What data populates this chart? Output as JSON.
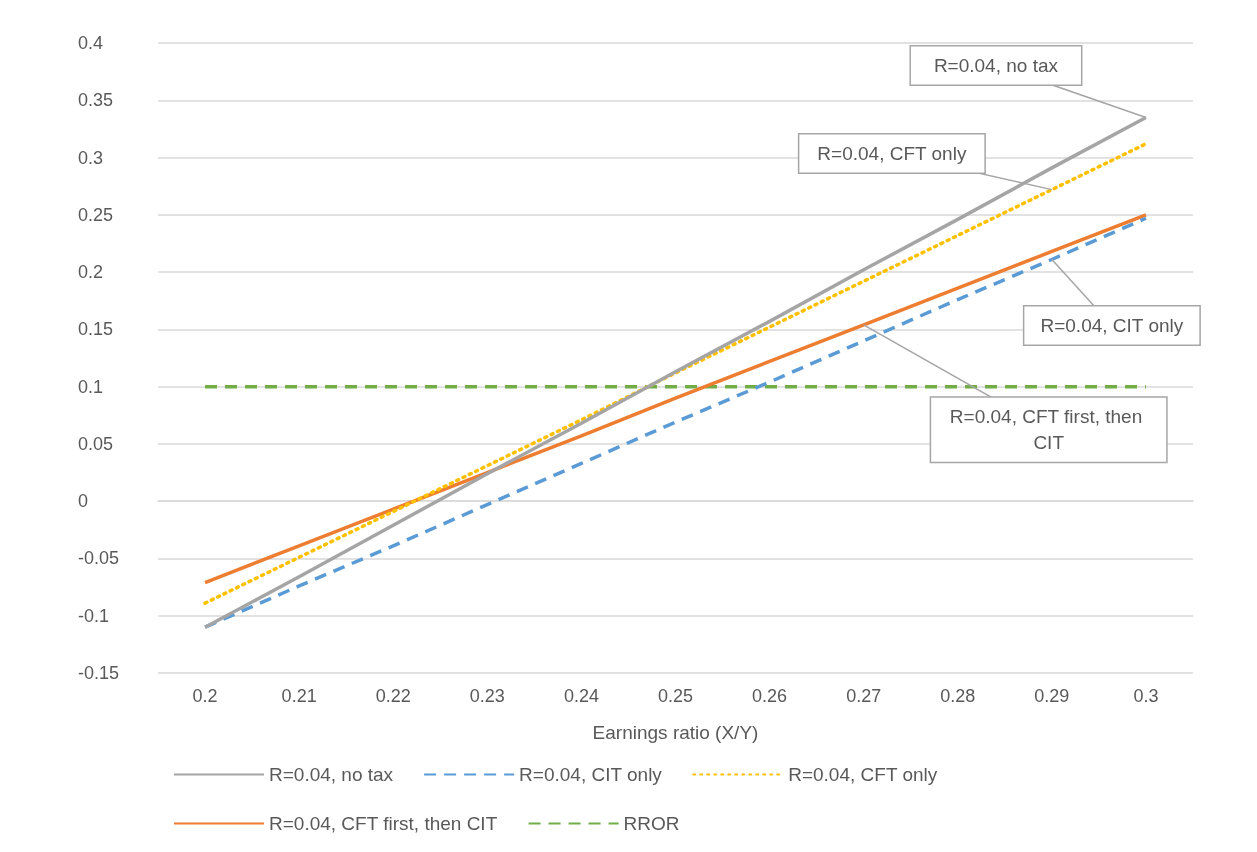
{
  "chart_data": {
    "type": "line",
    "xlabel": "Earnings ratio (X/Y)",
    "categories": [
      "0.2",
      "0.21",
      "0.22",
      "0.23",
      "0.24",
      "0.25",
      "0.26",
      "0.27",
      "0.28",
      "0.29",
      "0.3"
    ],
    "series": [
      {
        "name": "R=0.04, no tax",
        "color": "#a5a5a5",
        "line_style": "solid",
        "values": [
          -0.11,
          -0.066,
          -0.021,
          0.024,
          0.068,
          0.113,
          0.157,
          0.202,
          0.246,
          0.291,
          0.335
        ]
      },
      {
        "name": "R=0.04, CIT only",
        "color": "#5b9bd5",
        "line_style": "dashed",
        "values": [
          -0.11,
          -0.074,
          -0.039,
          -0.003,
          0.033,
          0.069,
          0.104,
          0.14,
          0.176,
          0.211,
          0.247
        ]
      },
      {
        "name": "R=0.04, CFT only",
        "color": "#ffc000",
        "line_style": "dotted",
        "values": [
          -0.089,
          -0.049,
          -0.009,
          0.031,
          0.071,
          0.112,
          0.152,
          0.192,
          0.232,
          0.272,
          0.312
        ]
      },
      {
        "name": "R=0.04, CFT first, then CIT",
        "color": "#ed7d31",
        "line_style": "solid",
        "values": [
          -0.071,
          -0.039,
          -0.007,
          0.025,
          0.057,
          0.09,
          0.122,
          0.154,
          0.186,
          0.218,
          0.25
        ]
      },
      {
        "name": "RROR",
        "color": "#70ad47",
        "line_style": "dashed",
        "values": [
          0.1,
          0.1,
          0.1,
          0.1,
          0.1,
          0.1,
          0.1,
          0.1,
          0.1,
          0.1,
          0.1
        ]
      }
    ],
    "ylim": [
      -0.15,
      0.4
    ],
    "yticks": [
      -0.15,
      -0.1,
      -0.05,
      0,
      0.05,
      0.1,
      0.15,
      0.2,
      0.25,
      0.3,
      0.35,
      0.4
    ],
    "grid": "y",
    "legend": "bottom",
    "marker": "none",
    "annotations": [
      {
        "text": "R=0.04, no tax",
        "x": "0.3",
        "y": 0.335
      },
      {
        "text": "R=0.04, CFT only",
        "x": "0.29",
        "y": 0.272
      },
      {
        "text": "R=0.04, CIT only",
        "x": "0.29",
        "y": 0.211
      },
      {
        "text": "R=0.04, CFT first, then CIT",
        "x": "0.27",
        "y": 0.154
      }
    ]
  }
}
